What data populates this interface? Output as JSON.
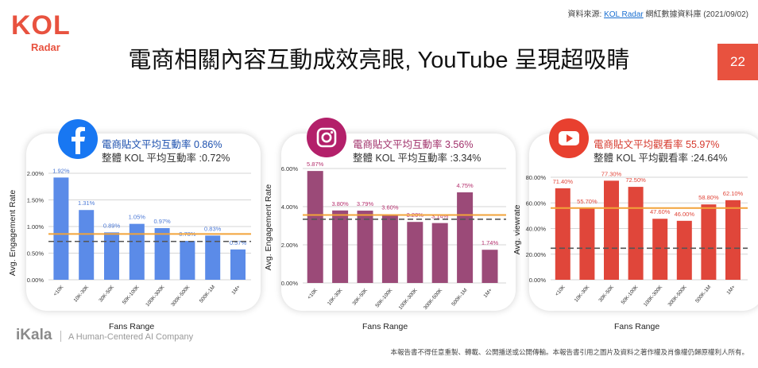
{
  "logo": {
    "main": "KOL",
    "sub": "Radar"
  },
  "source": {
    "prefix": "資料來源:",
    "link": "KOL Radar",
    "suffix": "網紅數據資料庫 (2021/09/02)"
  },
  "title": "電商相關內容互動成效亮眼, YouTube 呈現超吸睛",
  "page_number": "22",
  "footer": {
    "brand": "iKala",
    "tagline": "A Human-Centered AI Company",
    "note": "本報告書不得任意重製、轉載、公開播送或公開傳輸。本報告書引用之圖片及資料之著作權及肖像權仍歸原權利人所有。"
  },
  "chart_data": [
    {
      "type": "bar",
      "platform": "facebook",
      "icon": "facebook-icon",
      "stat_label": "電商貼文平均互動率",
      "stat_value": "0.86%",
      "overall_label": "整體 KOL 平均互動率",
      "overall_value": ":0.72%",
      "ylabel": "Avg. Engagement Rate",
      "xlabel": "Fans Range",
      "categories": [
        "<10K",
        "10K-30K",
        "30K-50K",
        "50K-100K",
        "100K-300K",
        "300K-500K",
        "500K-1M",
        "1M+"
      ],
      "values": [
        1.92,
        1.31,
        0.89,
        1.05,
        0.97,
        0.73,
        0.83,
        0.57
      ],
      "labels": [
        "1.92%",
        "1.31%",
        "0.89%",
        "1.05%",
        "0.97%",
        "0.73%",
        "0.83%",
        "0.57%"
      ],
      "yticks": [
        "0.00%",
        "0.50%",
        "1.00%",
        "1.50%",
        "2.00%"
      ],
      "ymax": 2.0,
      "avg_ecommerce": 0.86,
      "avg_overall": 0.72,
      "bar_color": "#5b8be8",
      "label_color": "#4a78d6",
      "stat_color": "#1b4fae",
      "icon_color": "#1877f2"
    },
    {
      "type": "bar",
      "platform": "instagram",
      "icon": "instagram-icon",
      "stat_label": "電商貼文平均互動率",
      "stat_value": "3.56%",
      "overall_label": "整體 KOL 平均互動率",
      "overall_value": ":3.34%",
      "ylabel": "Avg. Engagement Rate",
      "xlabel": "Fans Range",
      "categories": [
        "<10K",
        "10K-30K",
        "30K-50K",
        "50K-100K",
        "100K-300K",
        "300K-500K",
        "500K-1M",
        "1M+"
      ],
      "values": [
        5.87,
        3.8,
        3.79,
        3.6,
        3.2,
        3.14,
        4.75,
        1.74
      ],
      "labels": [
        "5.87%",
        "3.80%",
        "3.79%",
        "3.60%",
        "3.20%",
        "3.14%",
        "4.75%",
        "1.74%"
      ],
      "yticks": [
        "0.00%",
        "2.00%",
        "4.00%",
        "6.00%"
      ],
      "ymax": 6.0,
      "avg_ecommerce": 3.56,
      "avg_overall": 3.34,
      "bar_color": "#9b4a78",
      "label_color": "#b5306e",
      "stat_color": "#a0306a",
      "icon_color": "#b3206a"
    },
    {
      "type": "bar",
      "platform": "youtube",
      "icon": "youtube-icon",
      "stat_label": "電商貼文平均觀看率",
      "stat_value": "55.97%",
      "overall_label": "整體 KOL 平均觀看率",
      "overall_value": ":24.64%",
      "ylabel": "Avg. viewrate",
      "xlabel": "Fans Range",
      "categories": [
        "<10K",
        "10K-30K",
        "30K-50K",
        "50K-100K",
        "100K-300K",
        "300K-500K",
        "500K-1M",
        "1M+"
      ],
      "values": [
        71.4,
        55.7,
        77.3,
        72.5,
        47.6,
        46.0,
        58.8,
        62.1
      ],
      "labels": [
        "71.40%",
        "55.70%",
        "77.30%",
        "72.50%",
        "47.60%",
        "46.00%",
        "58.80%",
        "62.10%"
      ],
      "yticks": [
        "0.00%",
        "20.00%",
        "40.00%",
        "60.00%",
        "80.00%"
      ],
      "ymax": 80.0,
      "avg_ecommerce": 55.97,
      "avg_overall": 24.64,
      "bar_color": "#e0463a",
      "label_color": "#e0463a",
      "stat_color": "#d63a2e",
      "icon_color": "#e8402f"
    }
  ]
}
